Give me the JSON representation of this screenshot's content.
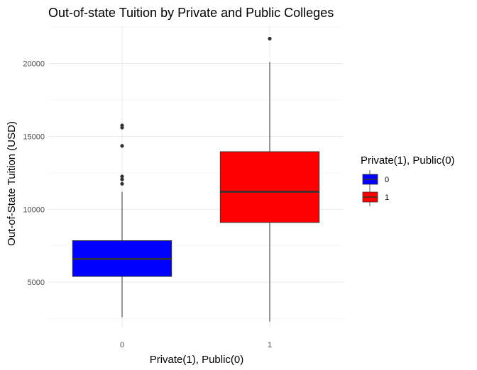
{
  "chart_data": {
    "type": "box",
    "title": "Out-of-state Tuition by Private and Public Colleges",
    "xlabel": "Private(1), Public(0)",
    "ylabel": "Out-of-State Tuition (USD)",
    "ylim": [
      1900,
      22600
    ],
    "yticks": [
      5000,
      10000,
      15000,
      20000
    ],
    "ytick_labels": [
      "5000",
      "10000",
      "15000",
      "20000"
    ],
    "grid": true,
    "legend": {
      "title": "Private(1), Public(0)",
      "position": "right",
      "entries": [
        {
          "label": "0",
          "color": "#0000ff"
        },
        {
          "label": "1",
          "color": "#ff0000"
        }
      ]
    },
    "categories": [
      "0",
      "1"
    ],
    "boxes": [
      {
        "category": "0",
        "color": "#0000ff",
        "whisker_low": 2600,
        "q1": 5400,
        "median": 6600,
        "q3": 7850,
        "whisker_high": 11200,
        "outliers": [
          11750,
          12050,
          12250,
          14350,
          15600,
          15750
        ]
      },
      {
        "category": "1",
        "color": "#ff0000",
        "whisker_low": 2300,
        "q1": 9100,
        "median": 11200,
        "q3": 13950,
        "whisker_high": 20100,
        "outliers": [
          21700
        ]
      }
    ]
  }
}
